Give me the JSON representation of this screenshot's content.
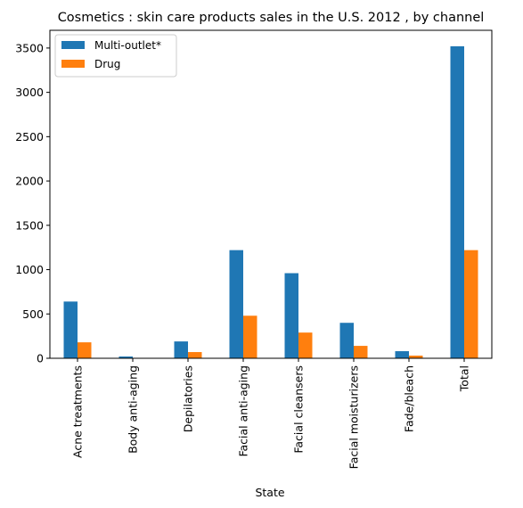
{
  "chart_data": {
    "type": "bar",
    "title": "Cosmetics : skin care products sales in the U.S. 2012 , by channel",
    "xlabel": "State",
    "ylabel": "",
    "categories": [
      "Acne treatments",
      "Body anti-aging",
      "Depilatories",
      "Facial anti-aging",
      "Facial cleansers",
      "Facial moisturizers",
      "Fade/bleach",
      "Total"
    ],
    "series": [
      {
        "name": "Multi-outlet*",
        "color": "#1f77b4",
        "values": [
          640,
          20,
          190,
          1220,
          960,
          400,
          80,
          3520
        ]
      },
      {
        "name": "Drug",
        "color": "#ff7f0e",
        "values": [
          180,
          5,
          70,
          480,
          290,
          140,
          30,
          1220
        ]
      }
    ],
    "ylim": [
      0,
      3700
    ],
    "yticks": [
      0,
      500,
      1000,
      1500,
      2000,
      2500,
      3000,
      3500
    ],
    "legend_position": "top-left",
    "grid": false
  }
}
